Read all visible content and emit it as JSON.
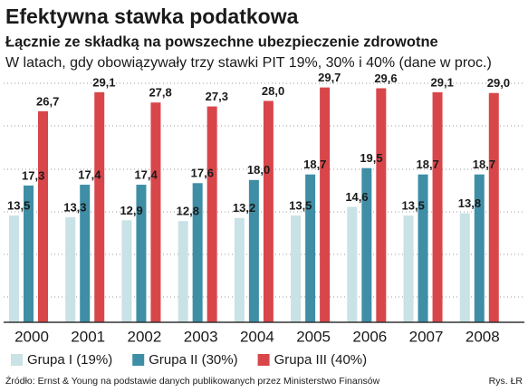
{
  "chart_data": {
    "type": "bar",
    "title": "Efektywna stawka podatkowa",
    "subtitle": "Łącznie ze składką na powszechne ubezpieczenie zdrowotne",
    "description": "W latach, gdy obowiązywały trzy stawki PIT 19%, 30%  i 40% (dane w proc.)",
    "categories": [
      "2000",
      "2001",
      "2002",
      "2003",
      "2004",
      "2005",
      "2006",
      "2007",
      "2008"
    ],
    "series": [
      {
        "name": "Grupa I (19%)",
        "color": "#c8e2e5",
        "values": [
          13.5,
          13.3,
          12.9,
          12.8,
          13.2,
          13.5,
          14.6,
          13.5,
          13.8
        ],
        "value_labels": [
          "13,5",
          "13,3",
          "12,9",
          "12,8",
          "13,2",
          "13,5",
          "14,6",
          "13,5",
          "13,8"
        ]
      },
      {
        "name": "Grupa II (30%)",
        "color": "#3e8ea6",
        "values": [
          17.3,
          17.4,
          17.4,
          17.6,
          18.0,
          18.7,
          19.5,
          18.7,
          18.7
        ],
        "value_labels": [
          "17,3",
          "17,4",
          "17,4",
          "17,6",
          "18,0",
          "18,7",
          "19,5",
          "18,7",
          "18,7"
        ]
      },
      {
        "name": "Grupa III (40%)",
        "color": "#d8464a",
        "values": [
          26.7,
          29.1,
          27.8,
          27.3,
          28.0,
          29.7,
          29.6,
          29.1,
          29.0
        ],
        "value_labels": [
          "26,7",
          "29,1",
          "27,8",
          "27,3",
          "28,0",
          "29,7",
          "29,6",
          "29,1",
          "29,0"
        ]
      }
    ],
    "ylim": [
      0,
      30
    ],
    "source": "Źródło: Ernst & Young na podstawie danych publikowanych przez Ministerstwo Finansów",
    "credit": "Rys. ŁR"
  }
}
